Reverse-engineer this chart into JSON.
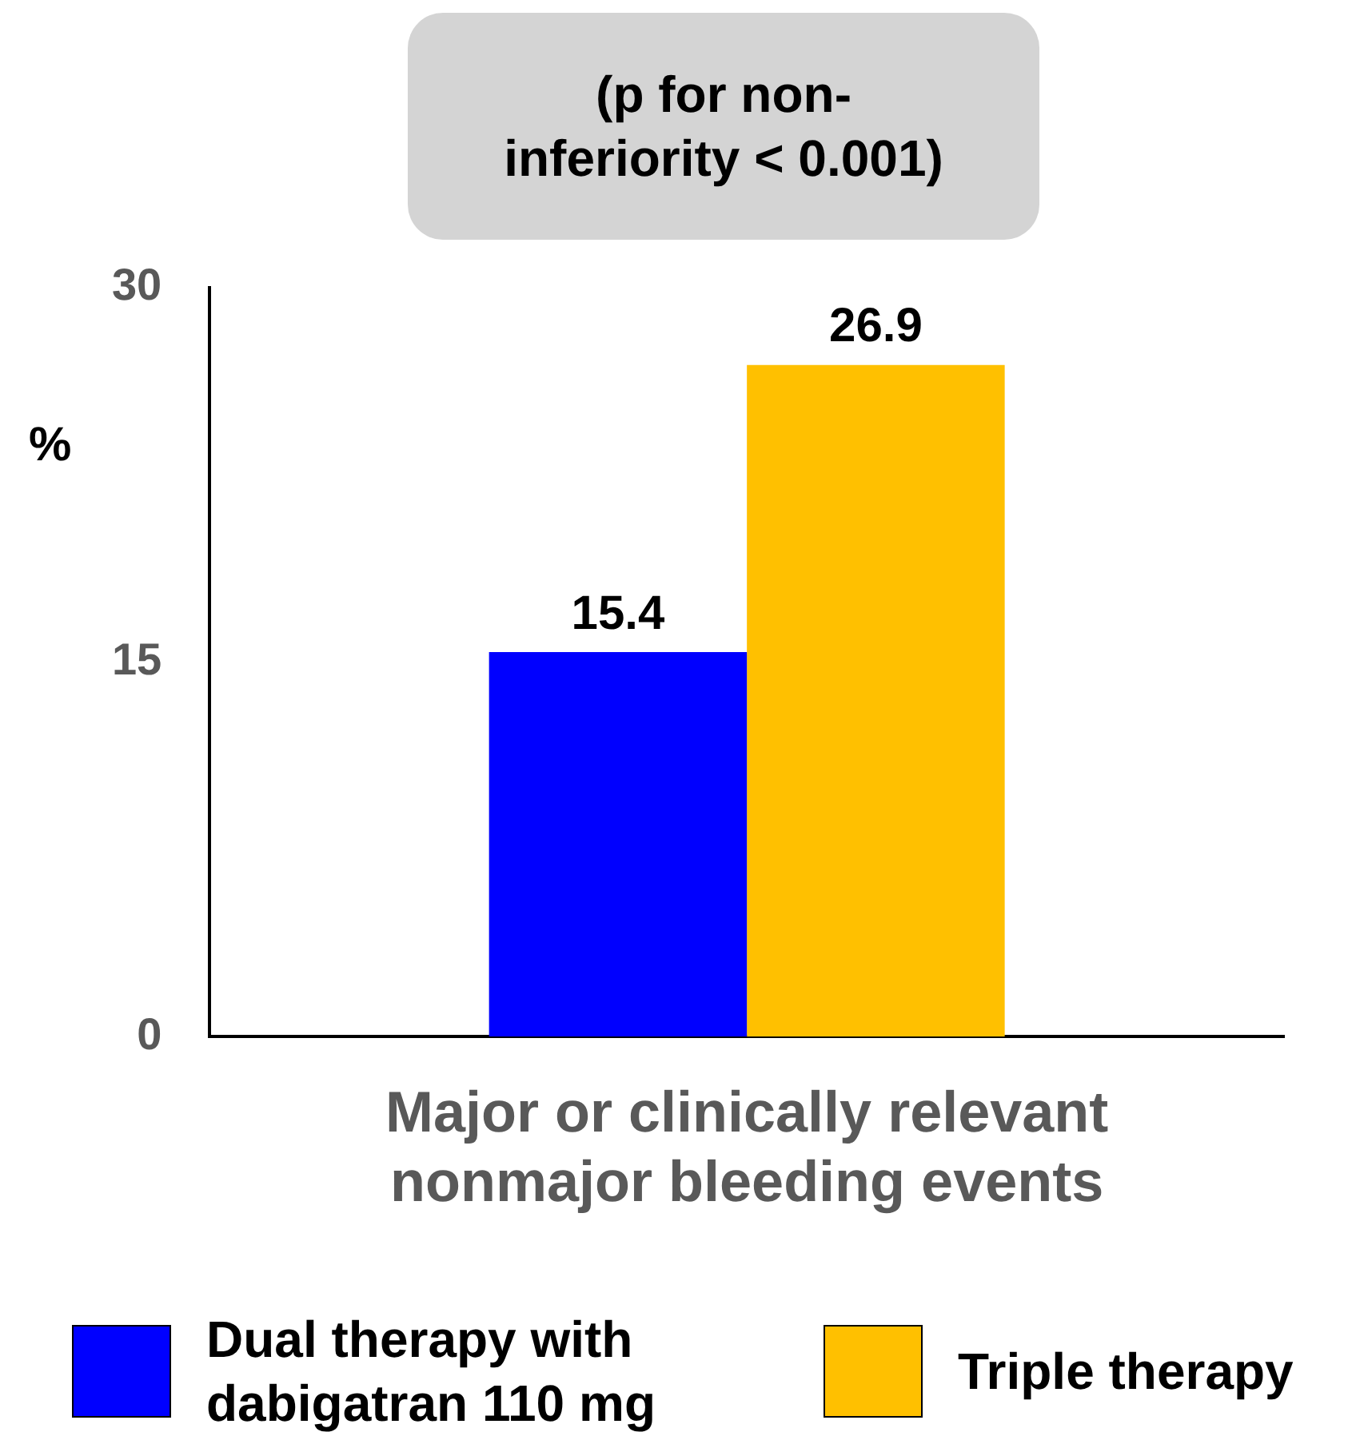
{
  "chart_data": {
    "type": "bar",
    "ylabel": "%",
    "categories": [
      "Major or clinically relevant nonmajor bleeding events"
    ],
    "series": [
      {
        "name": "Dual therapy with dabigatran 110 mg",
        "color": "#0000ff",
        "values": [
          15.4
        ]
      },
      {
        "name": "Triple therapy",
        "color": "#ffc000",
        "values": [
          26.9
        ]
      }
    ],
    "ylim": [
      0,
      30
    ],
    "yticks": [
      0,
      15,
      30
    ],
    "grid": false,
    "legend": "bottom",
    "data_labels": true,
    "annotations": [
      "(p for non-inferiority < 0.001)"
    ]
  }
}
